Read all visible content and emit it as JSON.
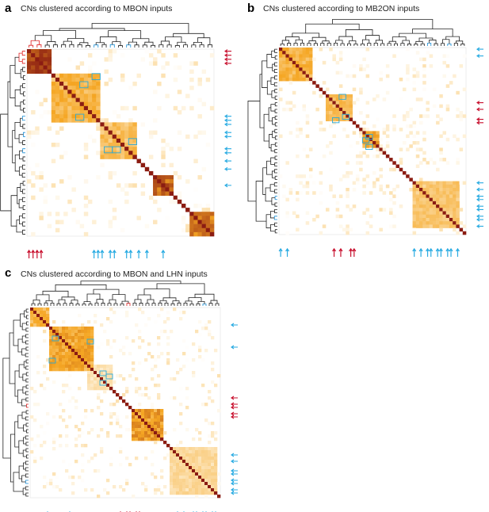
{
  "panels": [
    {
      "id": "a",
      "letter": "a",
      "title": "CNs clustered according to MBON inputs",
      "n": 46,
      "seed": 11,
      "blocks": [
        [
          0,
          6,
          0.9
        ],
        [
          6,
          12,
          0.55
        ],
        [
          18,
          9,
          0.5
        ],
        [
          31,
          5,
          0.85
        ],
        [
          40,
          6,
          0.75
        ]
      ],
      "red_leaves": [
        0,
        1,
        2,
        3
      ],
      "blue_leaves": [
        16,
        17,
        18,
        20,
        21,
        24,
        25,
        27,
        29,
        33
      ]
    },
    {
      "id": "b",
      "letter": "b",
      "title": "CNs clustered according to MB2ON inputs",
      "n": 56,
      "seed": 23,
      "blocks": [
        [
          0,
          10,
          0.55
        ],
        [
          14,
          8,
          0.5
        ],
        [
          25,
          5,
          0.6
        ],
        [
          40,
          14,
          0.45
        ]
      ],
      "red_leaves": [
        16,
        18,
        21,
        22
      ],
      "blue_leaves": [
        0,
        2,
        40,
        42,
        44,
        45,
        47,
        48,
        50,
        51,
        53
      ]
    },
    {
      "id": "c",
      "letter": "c",
      "title": "CNs clustered according to MBON and LHN inputs",
      "n": 60,
      "seed": 37,
      "blocks": [
        [
          0,
          6,
          0.55
        ],
        [
          6,
          14,
          0.6
        ],
        [
          18,
          8,
          0.3
        ],
        [
          32,
          10,
          0.65
        ],
        [
          44,
          15,
          0.35
        ]
      ],
      "red_leaves": [
        28,
        30,
        31,
        33,
        34
      ],
      "blue_leaves": [
        5,
        12,
        46,
        48,
        51,
        52,
        54,
        55,
        57,
        58
      ]
    }
  ],
  "colors": {
    "high": "#8b1c12",
    "mid": "#f5a623",
    "low": "#fde9c4",
    "tree_black": "#222222",
    "tree_red": "#e02020",
    "tree_blue": "#1a8fd6",
    "arrow_blue": "#29abe2",
    "arrow_red": "#c8102e"
  }
}
